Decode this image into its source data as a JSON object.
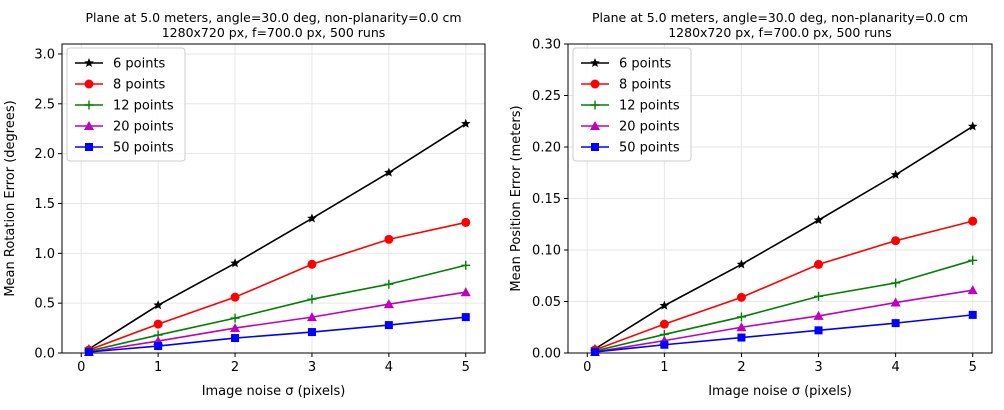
{
  "chart_data": [
    {
      "type": "line",
      "title": "Plane at 5.0 meters, angle=30.0 deg, non-planarity=0.0 cm\n1280x720 px, f=700.0 px, 500 runs",
      "xlabel": "Image noise σ (pixels)",
      "ylabel": "Mean Rotation Error (degrees)",
      "xlim": [
        -0.25,
        5.25
      ],
      "ylim": [
        0,
        3.1
      ],
      "xticks": [
        0,
        1,
        2,
        3,
        4,
        5
      ],
      "yticks": [
        0.0,
        0.5,
        1.0,
        1.5,
        2.0,
        2.5,
        3.0
      ],
      "ytick_labels": [
        "0.0",
        "0.5",
        "1.0",
        "1.5",
        "2.0",
        "2.5",
        "3.0"
      ],
      "grid": true,
      "legend_position": "top-left",
      "x": [
        0.1,
        1,
        2,
        3,
        4,
        5
      ],
      "series": [
        {
          "name": "6 points",
          "color": "#000000",
          "marker": "star",
          "values": [
            0.04,
            0.48,
            0.9,
            1.35,
            1.81,
            2.3
          ]
        },
        {
          "name": "8 points",
          "color": "#ff0000",
          "marker": "circle",
          "values": [
            0.03,
            0.29,
            0.56,
            0.89,
            1.14,
            1.31
          ]
        },
        {
          "name": "12 points",
          "color": "#008000",
          "marker": "plus",
          "values": [
            0.02,
            0.18,
            0.35,
            0.54,
            0.69,
            0.88
          ]
        },
        {
          "name": "20 points",
          "color": "#bf00bf",
          "marker": "triangle",
          "values": [
            0.01,
            0.12,
            0.25,
            0.36,
            0.49,
            0.61
          ]
        },
        {
          "name": "50 points",
          "color": "#0000ff",
          "marker": "square",
          "values": [
            0.01,
            0.07,
            0.15,
            0.21,
            0.28,
            0.36
          ]
        }
      ]
    },
    {
      "type": "line",
      "title": "Plane at 5.0 meters, angle=30.0 deg, non-planarity=0.0 cm\n1280x720 px, f=700.0 px, 500 runs",
      "xlabel": "Image noise σ (pixels)",
      "ylabel": "Mean Position Error (meters)",
      "xlim": [
        -0.25,
        5.25
      ],
      "ylim": [
        0,
        0.3
      ],
      "xticks": [
        0,
        1,
        2,
        3,
        4,
        5
      ],
      "yticks": [
        0.0,
        0.05,
        0.1,
        0.15,
        0.2,
        0.25,
        0.3
      ],
      "ytick_labels": [
        "0.00",
        "0.05",
        "0.10",
        "0.15",
        "0.20",
        "0.25",
        "0.30"
      ],
      "grid": true,
      "legend_position": "top-left",
      "x": [
        0.1,
        1,
        2,
        3,
        4,
        5
      ],
      "series": [
        {
          "name": "6 points",
          "color": "#000000",
          "marker": "star",
          "values": [
            0.004,
            0.046,
            0.086,
            0.129,
            0.173,
            0.22
          ]
        },
        {
          "name": "8 points",
          "color": "#ff0000",
          "marker": "circle",
          "values": [
            0.003,
            0.028,
            0.054,
            0.086,
            0.109,
            0.128
          ]
        },
        {
          "name": "12 points",
          "color": "#008000",
          "marker": "plus",
          "values": [
            0.002,
            0.018,
            0.035,
            0.055,
            0.068,
            0.09
          ]
        },
        {
          "name": "20 points",
          "color": "#bf00bf",
          "marker": "triangle",
          "values": [
            0.001,
            0.012,
            0.025,
            0.036,
            0.049,
            0.061
          ]
        },
        {
          "name": "50 points",
          "color": "#0000ff",
          "marker": "square",
          "values": [
            0.001,
            0.008,
            0.015,
            0.022,
            0.029,
            0.037
          ]
        }
      ]
    }
  ]
}
